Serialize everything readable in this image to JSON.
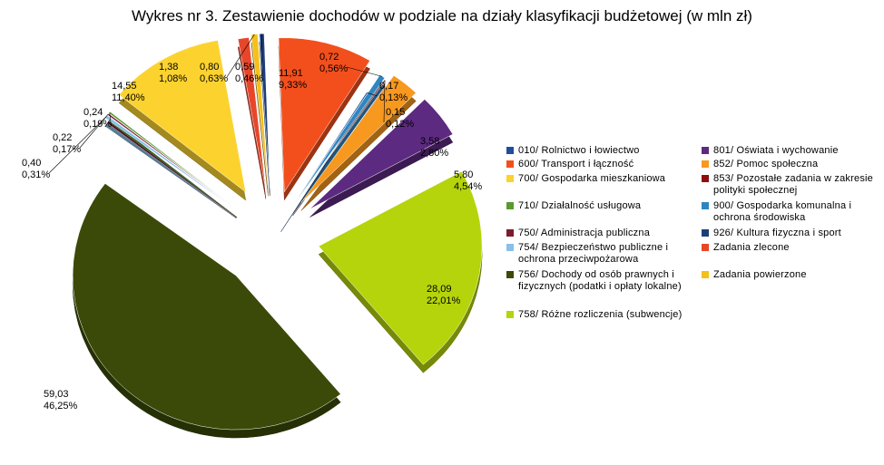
{
  "chart_data": {
    "type": "pie",
    "title": "Wykres nr 3. Zestawienie dochodów w podziale na działy klasyfikacji budżetowej (w mln zł)",
    "exploded": true,
    "three_d": true,
    "legend_position": "right",
    "slices": [
      {
        "label": "010/ Rolnictwo i łowiectwo",
        "value": "0,17",
        "percent": "0,13%",
        "color": "#1f4e9a"
      },
      {
        "label": "600/ Transport i łączność",
        "value": "11,91",
        "percent": "9,33%",
        "color": "#f34f1c"
      },
      {
        "label": "700/ Gospodarka mieszkaniowa",
        "value": "14,55",
        "percent": "11,40%",
        "color": "#fcd32e"
      },
      {
        "label": "710/ Działalność usługowa",
        "value": "0,24",
        "percent": "0,19%",
        "color": "#5b9a2e"
      },
      {
        "label": "750/ Administracja publiczna",
        "value": "0,22",
        "percent": "0,17%",
        "color": "#7a1c2e"
      },
      {
        "label": "754/ Bezpieczeństwo publiczne i ochrona przeciwpożarowa",
        "value": "0,40",
        "percent": "0,31%",
        "color": "#88c0e8"
      },
      {
        "label": "756/ Dochody od osób prawnych i fizycznych (podatki i opłaty lokalne)",
        "value": "59,03",
        "percent": "46,25%",
        "color": "#3b4a08"
      },
      {
        "label": "758/ Różne rozliczenia (subwencje)",
        "value": "28,09",
        "percent": "22,01%",
        "color": "#b5d40c"
      },
      {
        "label": "801/ Oświata i wychowanie",
        "value": "5,80",
        "percent": "4,54%",
        "color": "#5c2a80"
      },
      {
        "label": "852/ Pomoc społeczna",
        "value": "3,58",
        "percent": "2,80%",
        "color": "#f7981f"
      },
      {
        "label": "853/ Pozostałe zadania w zakresie polityki społecznej",
        "value": "0,15",
        "percent": "0,12%",
        "color": "#8c1010"
      },
      {
        "label": "900/ Gospodarka komunalna i ochrona środowiska",
        "value": "0,72",
        "percent": "0,56%",
        "color": "#2e86c0"
      },
      {
        "label": "926/ Kultura fizyczna i sport",
        "value": "0,59",
        "percent": "0,46%",
        "color": "#1c3f7a"
      },
      {
        "label": "Zadania zlecone",
        "value": "1,38",
        "percent": "1,08%",
        "color": "#e8462a"
      },
      {
        "label": "Zadania powierzone",
        "value": "0,80",
        "percent": "0,63%",
        "color": "#f5c018"
      }
    ]
  }
}
